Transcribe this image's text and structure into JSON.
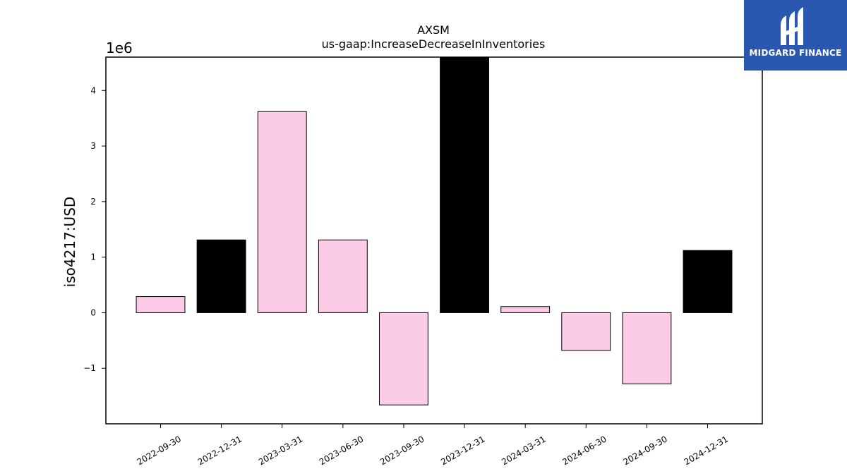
{
  "chart_data": {
    "type": "bar",
    "title": "AXSM",
    "subtitle": "us-gaap:IncreaseDecreaseInInventories",
    "ylabel": "iso4217:USD",
    "xlabel": "",
    "offset_label": "1e6",
    "ylim": [
      -2000000,
      4600000
    ],
    "yticks": [
      -1000000,
      0,
      1000000,
      2000000,
      3000000,
      4000000
    ],
    "ytick_labels": [
      "−1",
      "0",
      "1",
      "2",
      "3",
      "4"
    ],
    "categories": [
      "2022-09-30",
      "2022-12-31",
      "2023-03-31",
      "2023-06-30",
      "2023-09-30",
      "2023-12-31",
      "2024-03-31",
      "2024-06-30",
      "2024-09-30",
      "2024-12-31"
    ],
    "values": [
      290000,
      1310000,
      3620000,
      1310000,
      -1660000,
      4600000,
      110000,
      -680000,
      -1280000,
      1120000
    ],
    "colors": [
      "#fccbe6",
      "#000000",
      "#fccbe6",
      "#fccbe6",
      "#fccbe6",
      "#000000",
      "#fccbe6",
      "#fccbe6",
      "#fccbe6",
      "#000000"
    ],
    "grid": false,
    "legend": "none"
  },
  "logo": {
    "text": "MIDGARD FINANCE",
    "background": "#2a58b0",
    "icon": "midgard-logo-icon"
  }
}
